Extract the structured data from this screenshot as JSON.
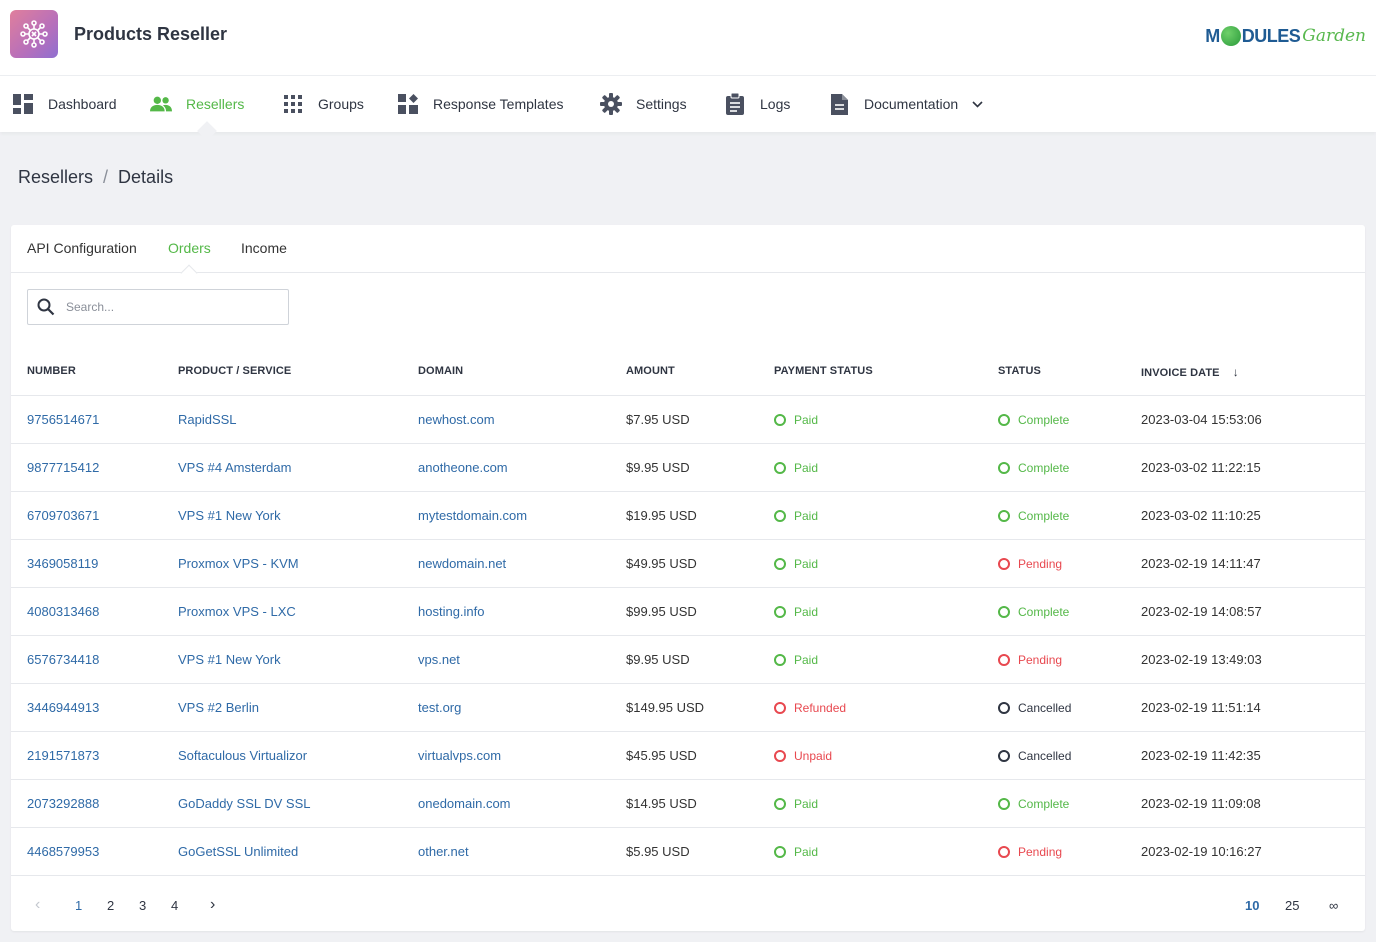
{
  "app": {
    "title": "Products Reseller",
    "brand_m": "M",
    "brand_dules": "DULES",
    "brand_garden": "Garden"
  },
  "nav": {
    "items": [
      {
        "label": "Dashboard",
        "icon": "dashboard-icon"
      },
      {
        "label": "Resellers",
        "icon": "users-icon",
        "active": true
      },
      {
        "label": "Groups",
        "icon": "grid-icon"
      },
      {
        "label": "Response Templates",
        "icon": "templates-icon"
      },
      {
        "label": "Settings",
        "icon": "gear-icon"
      },
      {
        "label": "Logs",
        "icon": "clipboard-icon"
      },
      {
        "label": "Documentation",
        "icon": "document-icon"
      }
    ]
  },
  "breadcrumb": {
    "parent": "Resellers",
    "separator": "/",
    "current": "Details"
  },
  "tabs": [
    {
      "label": "API Configuration"
    },
    {
      "label": "Orders",
      "active": true
    },
    {
      "label": "Income"
    }
  ],
  "search": {
    "placeholder": "Search..."
  },
  "table": {
    "headers": [
      "NUMBER",
      "PRODUCT / SERVICE",
      "DOMAIN",
      "AMOUNT",
      "PAYMENT STATUS",
      "STATUS",
      "INVOICE DATE"
    ],
    "rows": [
      {
        "number": "9756514671",
        "product": "RapidSSL",
        "domain": "newhost.com",
        "amount": "$7.95 USD",
        "payment": "Paid",
        "payment_type": "success",
        "status": "Complete",
        "status_type": "success",
        "date": "2023-03-04 15:53:06"
      },
      {
        "number": "9877715412",
        "product": "VPS #4 Amsterdam",
        "domain": "anotheone.com",
        "amount": "$9.95 USD",
        "payment": "Paid",
        "payment_type": "success",
        "status": "Complete",
        "status_type": "success",
        "date": "2023-03-02 11:22:15"
      },
      {
        "number": "6709703671",
        "product": "VPS #1 New York",
        "domain": "mytestdomain.com",
        "amount": "$19.95 USD",
        "payment": "Paid",
        "payment_type": "success",
        "status": "Complete",
        "status_type": "success",
        "date": "2023-03-02 11:10:25"
      },
      {
        "number": "3469058119",
        "product": "Proxmox VPS - KVM",
        "domain": "newdomain.net",
        "amount": "$49.95 USD",
        "payment": "Paid",
        "payment_type": "success",
        "status": "Pending",
        "status_type": "danger",
        "date": "2023-02-19 14:11:47"
      },
      {
        "number": "4080313468",
        "product": "Proxmox VPS - LXC",
        "domain": "hosting.info",
        "amount": "$99.95 USD",
        "payment": "Paid",
        "payment_type": "success",
        "status": "Complete",
        "status_type": "success",
        "date": "2023-02-19 14:08:57"
      },
      {
        "number": "6576734418",
        "product": "VPS #1 New York",
        "domain": "vps.net",
        "amount": "$9.95 USD",
        "payment": "Paid",
        "payment_type": "success",
        "status": "Pending",
        "status_type": "danger",
        "date": "2023-02-19 13:49:03"
      },
      {
        "number": "3446944913",
        "product": "VPS #2 Berlin",
        "domain": "test.org",
        "amount": "$149.95 USD",
        "payment": "Refunded",
        "payment_type": "danger",
        "status": "Cancelled",
        "status_type": "neutral",
        "date": "2023-02-19 11:51:14"
      },
      {
        "number": "2191571873",
        "product": "Softaculous Virtualizor",
        "domain": "virtualvps.com",
        "amount": "$45.95 USD",
        "payment": "Unpaid",
        "payment_type": "danger",
        "status": "Cancelled",
        "status_type": "neutral",
        "date": "2023-02-19 11:42:35"
      },
      {
        "number": "2073292888",
        "product": "GoDaddy SSL DV SSL",
        "domain": "onedomain.com",
        "amount": "$14.95 USD",
        "payment": "Paid",
        "payment_type": "success",
        "status": "Complete",
        "status_type": "success",
        "date": "2023-02-19 11:09:08"
      },
      {
        "number": "4468579953",
        "product": "GoGetSSL Unlimited",
        "domain": "other.net",
        "amount": "$5.95 USD",
        "payment": "Paid",
        "payment_type": "success",
        "status": "Pending",
        "status_type": "danger",
        "date": "2023-02-19 10:16:27"
      }
    ]
  },
  "pagination": {
    "pages": [
      "1",
      "2",
      "3",
      "4"
    ],
    "current_page": "1",
    "per_page_options": [
      "10",
      "25",
      "∞"
    ],
    "per_page_selected": "10"
  },
  "colors": {
    "accent": "#54b848",
    "link": "#2f6aa7",
    "danger": "#e8484f",
    "neutral": "#2f3542"
  }
}
